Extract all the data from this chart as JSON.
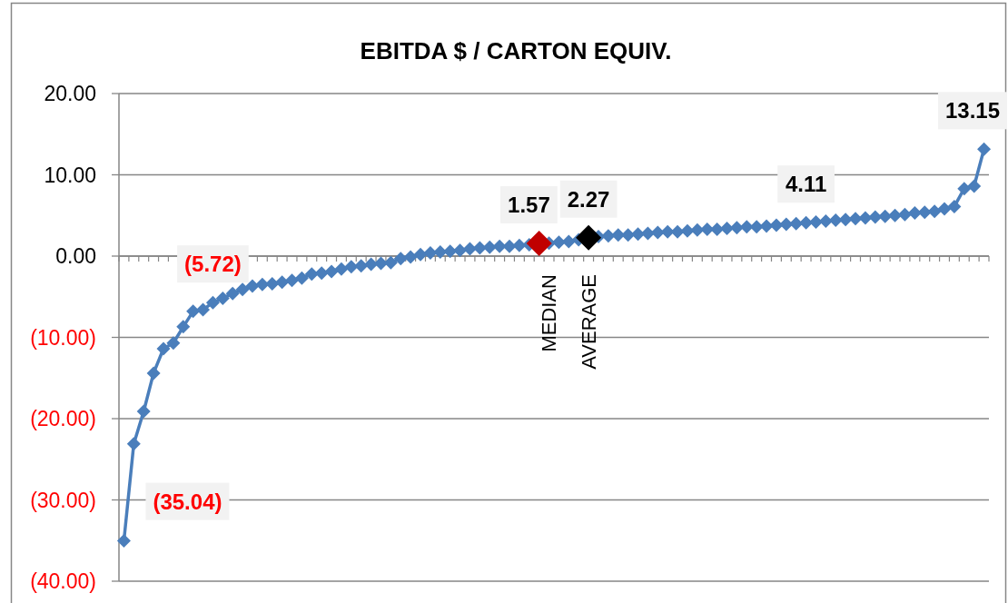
{
  "chart_data": {
    "type": "line",
    "title": "EBITDA $ / CARTON EQUIV.",
    "categories": [
      null,
      null,
      null,
      null,
      null,
      null,
      null,
      null,
      null,
      null,
      null,
      null,
      null,
      null,
      null,
      null,
      null,
      null,
      null,
      null,
      null,
      null,
      null,
      null,
      null,
      null,
      null,
      null,
      null,
      null,
      null,
      null,
      null,
      null,
      null,
      null,
      null,
      null,
      null,
      null,
      null,
      null,
      null,
      "MEDIAN",
      null,
      null,
      null,
      "AVERAGE",
      null,
      null,
      null,
      null,
      null,
      null,
      null,
      null,
      null,
      null,
      null,
      null,
      null,
      null,
      null,
      null,
      null,
      null,
      null,
      null,
      null,
      null,
      null,
      null,
      null,
      null,
      null,
      null,
      null,
      null,
      null,
      null,
      null,
      null,
      null,
      null,
      null,
      null,
      null,
      null
    ],
    "series": [
      {
        "color": "#4a7ebb",
        "colors": [
          "#4a7ebb",
          "#4a7ebb",
          "#4a7ebb",
          "#4a7ebb",
          "#4a7ebb",
          "#4a7ebb",
          "#4a7ebb",
          "#4a7ebb",
          "#4a7ebb",
          "#4a7ebb",
          "#4a7ebb",
          "#4a7ebb",
          "#4a7ebb",
          "#4a7ebb",
          "#4a7ebb",
          "#4a7ebb",
          "#4a7ebb",
          "#4a7ebb",
          "#4a7ebb",
          "#4a7ebb",
          "#4a7ebb",
          "#4a7ebb",
          "#4a7ebb",
          "#4a7ebb",
          "#4a7ebb",
          "#4a7ebb",
          "#4a7ebb",
          "#4a7ebb",
          "#4a7ebb",
          "#4a7ebb",
          "#4a7ebb",
          "#4a7ebb",
          "#4a7ebb",
          "#4a7ebb",
          "#4a7ebb",
          "#4a7ebb",
          "#4a7ebb",
          "#4a7ebb",
          "#4a7ebb",
          "#4a7ebb",
          "#4a7ebb",
          "#4a7ebb",
          "#c00000",
          "#4a7ebb",
          "#4a7ebb",
          "#4a7ebb",
          "#4a7ebb",
          "#000000",
          "#4a7ebb",
          "#4a7ebb",
          "#4a7ebb",
          "#4a7ebb",
          "#4a7ebb",
          "#4a7ebb",
          "#4a7ebb",
          "#4a7ebb",
          "#4a7ebb",
          "#4a7ebb",
          "#4a7ebb",
          "#4a7ebb",
          "#4a7ebb",
          "#4a7ebb",
          "#4a7ebb",
          "#4a7ebb",
          "#4a7ebb",
          "#4a7ebb",
          "#4a7ebb",
          "#4a7ebb",
          "#4a7ebb",
          "#4a7ebb",
          "#4a7ebb",
          "#4a7ebb",
          "#4a7ebb",
          "#4a7ebb",
          "#4a7ebb",
          "#4a7ebb",
          "#4a7ebb",
          "#4a7ebb",
          "#4a7ebb",
          "#4a7ebb",
          "#4a7ebb",
          "#4a7ebb",
          "#4a7ebb",
          "#4a7ebb",
          "#4a7ebb",
          "#4a7ebb",
          "#4a7ebb",
          "#4a7ebb"
        ],
        "values": [
          -35.04,
          -23.1,
          -19.1,
          -14.4,
          -11.4,
          -10.7,
          -8.7,
          -6.8,
          -6.6,
          -5.72,
          -5.2,
          -4.6,
          -4.1,
          -3.7,
          -3.5,
          -3.4,
          -3.2,
          -3.0,
          -2.7,
          -2.2,
          -2.1,
          -1.9,
          -1.6,
          -1.3,
          -1.2,
          -1.0,
          -0.9,
          -0.8,
          -0.3,
          -0.1,
          0.2,
          0.4,
          0.5,
          0.6,
          0.7,
          0.9,
          1.0,
          1.1,
          1.2,
          1.2,
          1.3,
          1.4,
          1.57,
          1.6,
          1.7,
          1.8,
          2.0,
          2.27,
          2.4,
          2.5,
          2.6,
          2.6,
          2.7,
          2.8,
          2.9,
          3.0,
          3.0,
          3.1,
          3.2,
          3.3,
          3.3,
          3.4,
          3.5,
          3.6,
          3.6,
          3.7,
          3.8,
          3.9,
          4.0,
          4.11,
          4.2,
          4.3,
          4.4,
          4.5,
          4.6,
          4.7,
          4.8,
          4.9,
          5.0,
          5.1,
          5.3,
          5.4,
          5.5,
          5.8,
          6.1,
          8.3,
          8.6,
          13.15
        ],
        "value_labels": [
          "(35.04)",
          null,
          null,
          null,
          null,
          null,
          null,
          null,
          null,
          "(5.72)",
          null,
          null,
          null,
          null,
          null,
          null,
          null,
          null,
          null,
          null,
          null,
          null,
          null,
          null,
          null,
          null,
          null,
          null,
          null,
          null,
          null,
          null,
          null,
          null,
          null,
          null,
          null,
          null,
          null,
          null,
          null,
          null,
          "1.57",
          null,
          null,
          null,
          null,
          "2.27",
          null,
          null,
          null,
          null,
          null,
          null,
          null,
          null,
          null,
          null,
          null,
          null,
          null,
          null,
          null,
          null,
          null,
          null,
          null,
          null,
          null,
          "4.11",
          null,
          null,
          null,
          null,
          null,
          null,
          null,
          null,
          null,
          null,
          null,
          null,
          null,
          null,
          null,
          null,
          null,
          "13.15"
        ]
      }
    ],
    "ylim": [
      -40,
      20
    ],
    "yticks": [
      {
        "value": 20,
        "label": "20.00"
      },
      {
        "value": 10,
        "label": "10.00"
      },
      {
        "value": 0,
        "label": "0.00"
      },
      {
        "value": -10,
        "label": "(10.00)"
      },
      {
        "value": -20,
        "label": "(20.00)"
      },
      {
        "value": -30,
        "label": "(30.00)"
      },
      {
        "value": -40,
        "label": "(40.00)"
      }
    ],
    "grid": "y",
    "marker": "diamond",
    "line_style": "solid"
  }
}
